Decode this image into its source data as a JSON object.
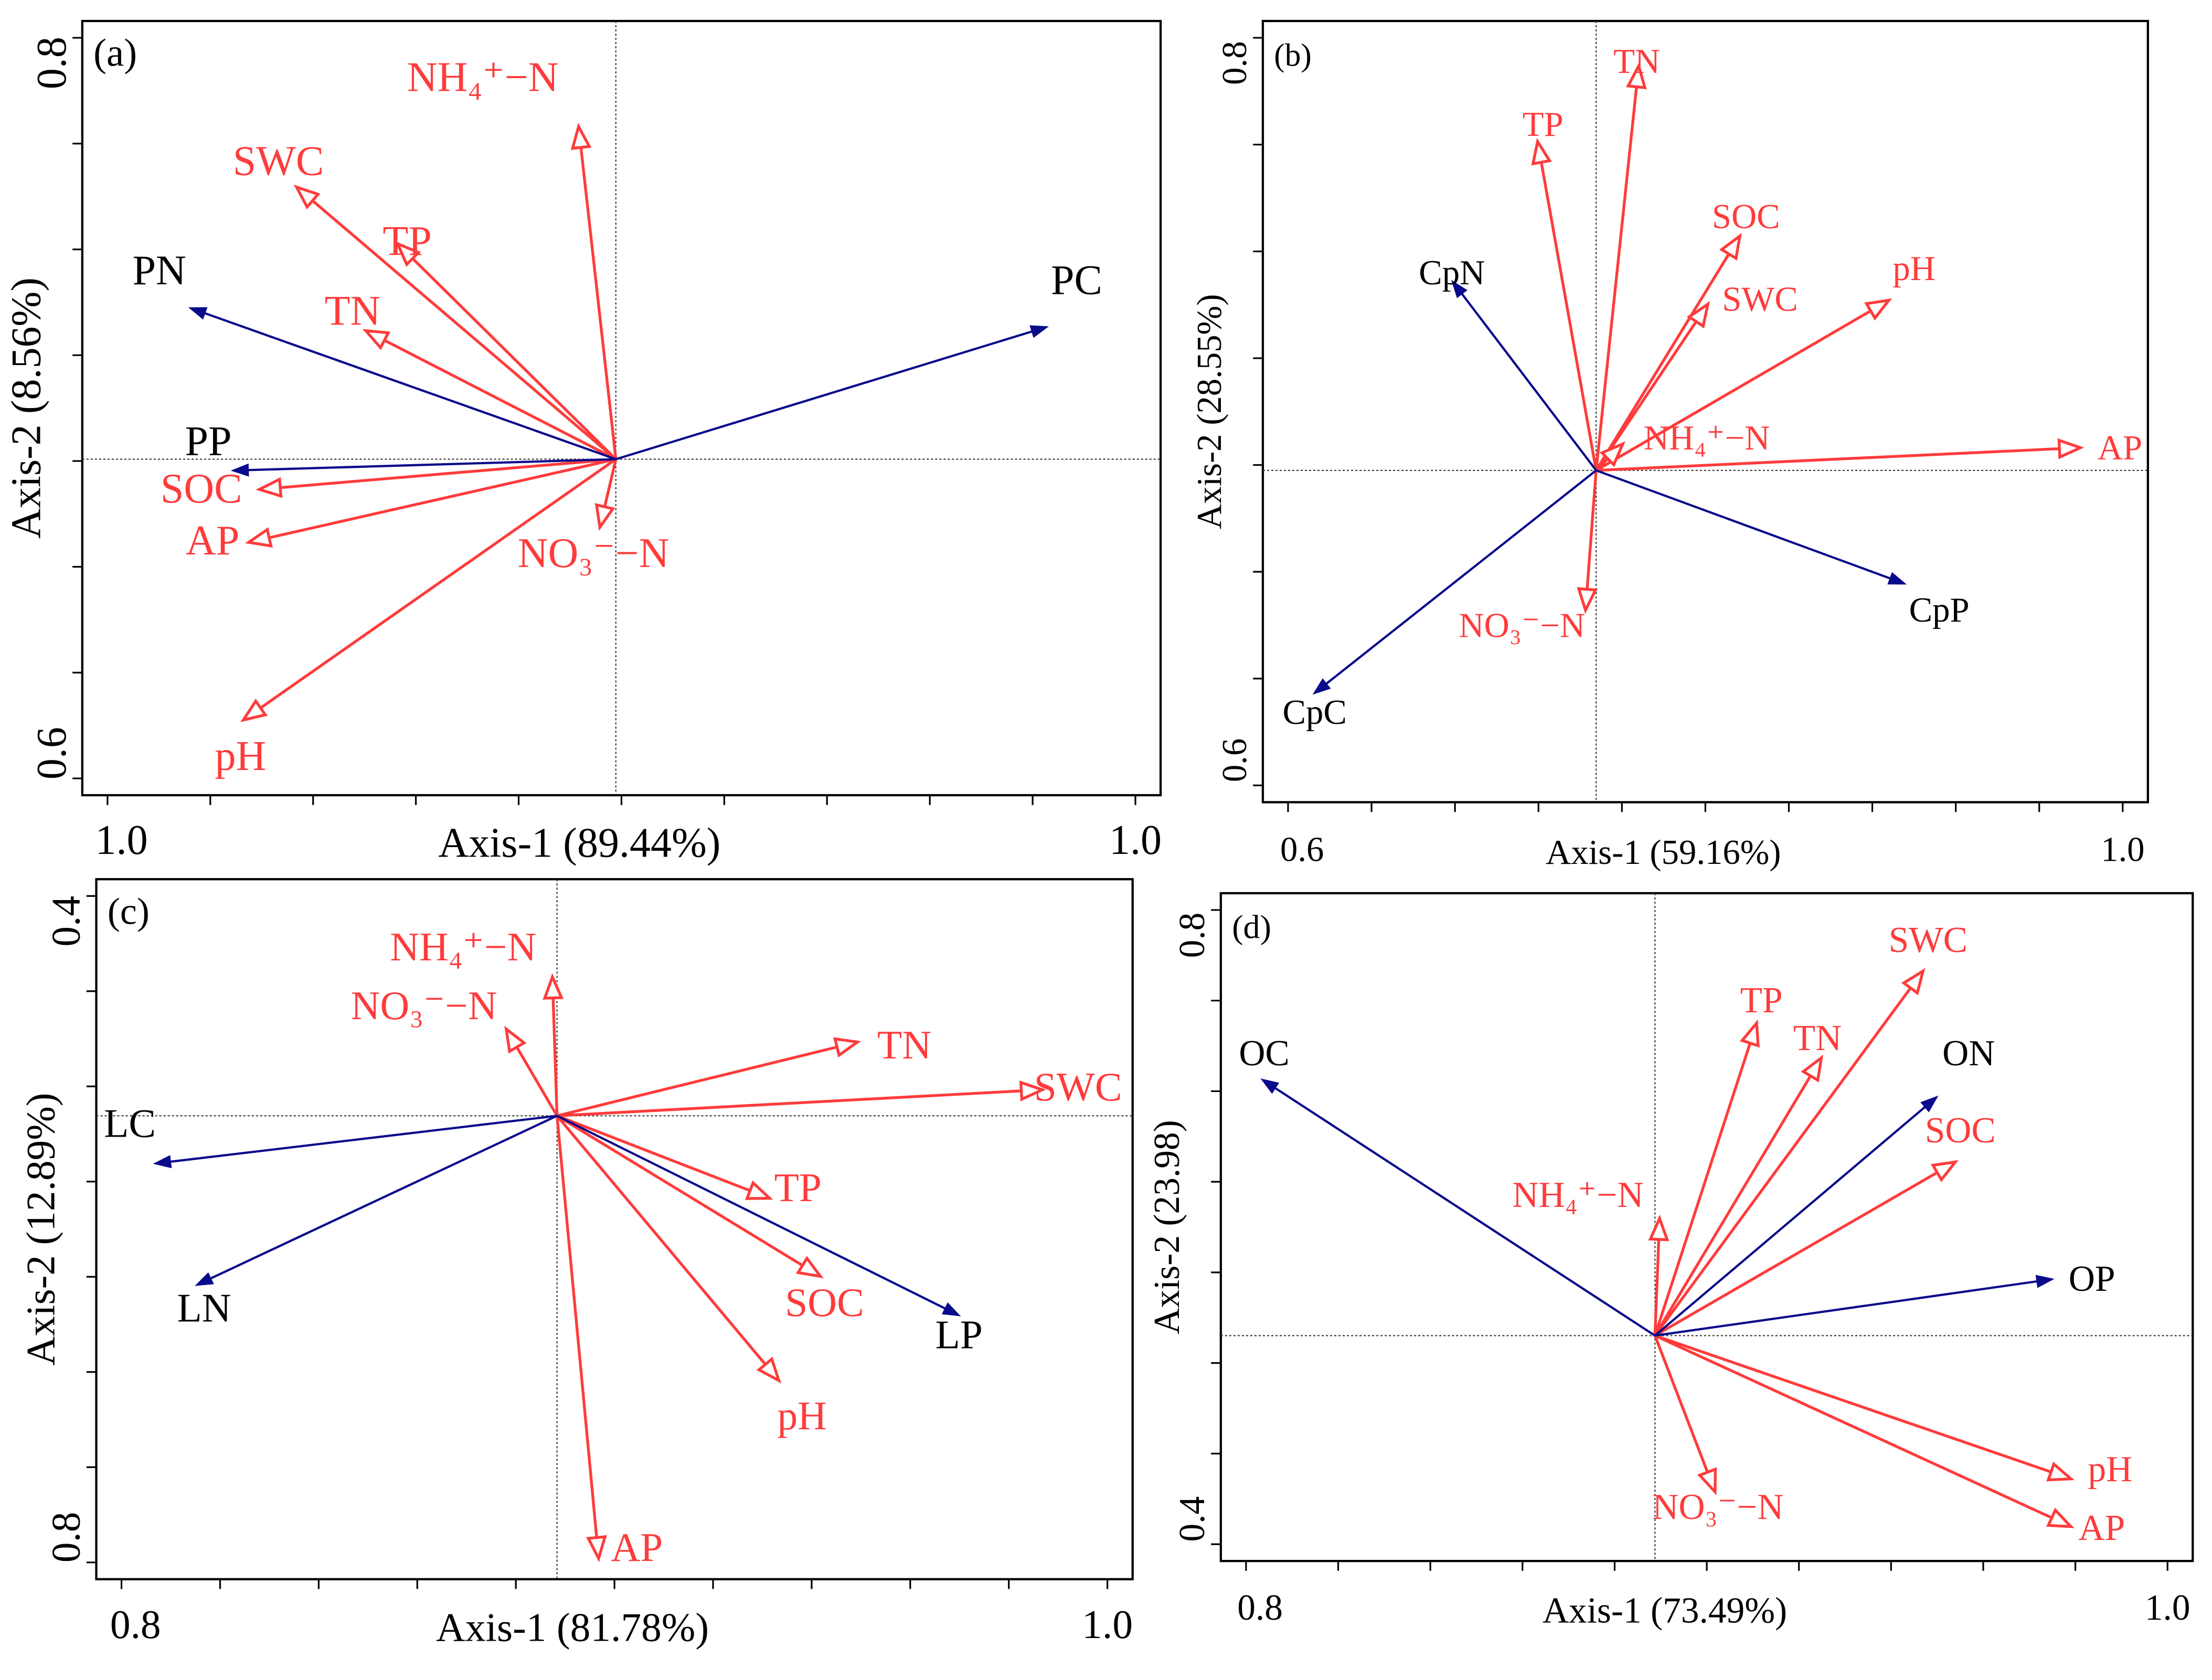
{
  "colors": {
    "environment": "#ff3b3b",
    "response": "#0a0a8c",
    "frame": "#000000"
  },
  "chart_data": [
    {
      "type": "biplot",
      "panel_label": "(a)",
      "xlabel": "Axis-1 (89.44%)",
      "ylabel": "Axis-2 (8.56%)",
      "x_ticks": [
        "1.0",
        "1.0"
      ],
      "y_ticks": [
        "0.8",
        "0.6"
      ],
      "environment_vectors": [
        {
          "label": "NH₄⁺−N",
          "x": -0.07,
          "y": 0.88
        },
        {
          "label": "SWC",
          "x": -0.6,
          "y": 0.72
        },
        {
          "label": "TP",
          "x": -0.41,
          "y": 0.57
        },
        {
          "label": "TN",
          "x": -0.47,
          "y": 0.34
        },
        {
          "label": "SOC",
          "x": -0.67,
          "y": -0.08
        },
        {
          "label": "AP",
          "x": -0.69,
          "y": -0.22
        },
        {
          "label": "NO₃⁻−N",
          "x": -0.03,
          "y": -0.18
        },
        {
          "label": "pH",
          "x": -0.7,
          "y": -0.69
        }
      ],
      "response_vectors": [
        {
          "label": "PN",
          "x": -0.8,
          "y": 0.4
        },
        {
          "label": "PP",
          "x": -0.72,
          "y": -0.03
        },
        {
          "label": "PC",
          "x": 0.81,
          "y": 0.35
        }
      ]
    },
    {
      "type": "biplot",
      "panel_label": "(b)",
      "xlabel": "Axis-1 (59.16%)",
      "ylabel": "Axis-2 (28.55%)",
      "x_ticks": [
        "0.6",
        "1.0"
      ],
      "y_ticks": [
        "0.8",
        "0.6"
      ],
      "environment_vectors": [
        {
          "label": "TN",
          "x": 0.08,
          "y": 1.07
        },
        {
          "label": "TP",
          "x": -0.11,
          "y": 0.87
        },
        {
          "label": "SOC",
          "x": 0.27,
          "y": 0.62
        },
        {
          "label": "pH",
          "x": 0.55,
          "y": 0.45
        },
        {
          "label": "SWC",
          "x": 0.21,
          "y": 0.44
        },
        {
          "label": "AP",
          "x": 0.91,
          "y": 0.06
        },
        {
          "label": "NH₄⁺−N",
          "x": 0.05,
          "y": 0.07
        },
        {
          "label": "NO₃⁻−N",
          "x": -0.02,
          "y": -0.37
        }
      ],
      "response_vectors": [
        {
          "label": "CpN",
          "x": -0.27,
          "y": 0.5
        },
        {
          "label": "CpP",
          "x": 0.58,
          "y": -0.3
        },
        {
          "label": "CpC",
          "x": -0.53,
          "y": -0.59
        }
      ]
    },
    {
      "type": "biplot",
      "panel_label": "(c)",
      "xlabel": "Axis-1 (81.78%)",
      "ylabel": "Axis-2 (12.89%)",
      "x_ticks": [
        "0.8",
        "1.0"
      ],
      "y_ticks": [
        "0.4",
        "0.8"
      ],
      "environment_vectors": [
        {
          "label": "NH₄⁺−N",
          "x": -0.01,
          "y": 0.32
        },
        {
          "label": "NO₃⁻−N",
          "x": -0.11,
          "y": 0.2
        },
        {
          "label": "TN",
          "x": 0.65,
          "y": 0.17
        },
        {
          "label": "SWC",
          "x": 1.05,
          "y": 0.06
        },
        {
          "label": "TP",
          "x": 0.46,
          "y": -0.19
        },
        {
          "label": "SOC",
          "x": 0.57,
          "y": -0.37
        },
        {
          "label": "pH",
          "x": 0.48,
          "y": -0.61
        },
        {
          "label": "AP",
          "x": 0.09,
          "y": -1.02
        }
      ],
      "response_vectors": [
        {
          "label": "LC",
          "x": -0.87,
          "y": -0.11
        },
        {
          "label": "LN",
          "x": -0.78,
          "y": -0.39
        },
        {
          "label": "LP",
          "x": 0.87,
          "y": -0.46
        }
      ]
    },
    {
      "type": "biplot",
      "panel_label": "(d)",
      "xlabel": "Axis-1 (73.49%)",
      "ylabel": "Axis-2 (23.98)",
      "x_ticks": [
        "0.8",
        "1.0"
      ],
      "y_ticks": [
        "0.8",
        "0.4"
      ],
      "environment_vectors": [
        {
          "label": "SWC",
          "x": 0.58,
          "y": 0.84
        },
        {
          "label": "TP",
          "x": 0.22,
          "y": 0.72
        },
        {
          "label": "TN",
          "x": 0.36,
          "y": 0.64
        },
        {
          "label": "SOC",
          "x": 0.65,
          "y": 0.4
        },
        {
          "label": "NH₄⁺−N",
          "x": 0.01,
          "y": 0.27
        },
        {
          "label": "NO₃⁻−N",
          "x": 0.13,
          "y": -0.36
        },
        {
          "label": "pH",
          "x": 0.9,
          "y": -0.33
        },
        {
          "label": "AP",
          "x": 0.9,
          "y": -0.44
        }
      ],
      "response_vectors": [
        {
          "label": "OC",
          "x": -0.85,
          "y": 0.59
        },
        {
          "label": "ON",
          "x": 0.61,
          "y": 0.55
        },
        {
          "label": "OP",
          "x": 0.86,
          "y": 0.13
        }
      ]
    }
  ]
}
